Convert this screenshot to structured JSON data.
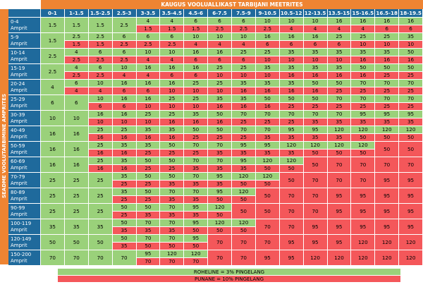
{
  "title": "KAUGUS VOOLUALLIKAST TARBIJANI MEETRITES",
  "vertical_title": "SEADME VOOLUTARBIMINE AMPRITES",
  "colors": {
    "green": "#9ad17a",
    "red": "#f4575a",
    "header_blue": "#1f6a9c",
    "title_orange": "#ee8432"
  },
  "columns": [
    "0-1",
    "1-1.5",
    "1.5-2.5",
    "2.5-3",
    "3-3.5",
    "3.5-4.5",
    "4.5-6",
    "6-7.5",
    "7.5-9",
    "9-10.5",
    "10.5-12",
    "12-13.5",
    "13.5-15",
    "15-16.5",
    "16.5-18",
    "18-19.5"
  ],
  "unit": "Amprit",
  "rows": [
    {
      "range": "0-4",
      "cells": [
        {
          "g": "1.5",
          "r": null
        },
        {
          "g": "1.5",
          "r": null
        },
        {
          "g": "1.5",
          "r": null
        },
        {
          "g": "2.5",
          "r": null
        },
        {
          "g": "4",
          "r": "1.5"
        },
        {
          "g": "4",
          "r": "1.5"
        },
        {
          "g": "6",
          "r": "1.5"
        },
        {
          "g": "6",
          "r": "2.5"
        },
        {
          "g": "6",
          "r": "2.5"
        },
        {
          "g": "10",
          "r": "2.5"
        },
        {
          "g": "10",
          "r": "4"
        },
        {
          "g": "10",
          "r": "4"
        },
        {
          "g": "16",
          "r": "4"
        },
        {
          "g": "16",
          "r": "4"
        },
        {
          "g": "16",
          "r": "6"
        },
        {
          "g": "16",
          "r": "6"
        }
      ]
    },
    {
      "range": "5-9",
      "cells": [
        {
          "g": "1.5",
          "r": null
        },
        {
          "g": "2.5",
          "r": "1.5"
        },
        {
          "g": "2.5",
          "r": "1.5"
        },
        {
          "g": "6",
          "r": "2.5"
        },
        {
          "g": "6",
          "r": "2.5"
        },
        {
          "g": "6",
          "r": "2.5"
        },
        {
          "g": "10",
          "r": "4"
        },
        {
          "g": "10",
          "r": "4"
        },
        {
          "g": "10",
          "r": "4"
        },
        {
          "g": "16",
          "r": "6"
        },
        {
          "g": "16",
          "r": "6"
        },
        {
          "g": "16",
          "r": "6"
        },
        {
          "g": "25",
          "r": "6"
        },
        {
          "g": "25",
          "r": "10"
        },
        {
          "g": "25",
          "r": "10"
        },
        {
          "g": "35",
          "r": "10"
        }
      ]
    },
    {
      "range": "10-14",
      "cells": [
        {
          "g": "2.5",
          "r": null
        },
        {
          "g": "4",
          "r": "2.5"
        },
        {
          "g": "6",
          "r": "2.5"
        },
        {
          "g": "6",
          "r": "2.5"
        },
        {
          "g": "10",
          "r": "4"
        },
        {
          "g": "10",
          "r": "4"
        },
        {
          "g": "16",
          "r": "6"
        },
        {
          "g": "16",
          "r": "6"
        },
        {
          "g": "25",
          "r": "6"
        },
        {
          "g": "25",
          "r": "10"
        },
        {
          "g": "35",
          "r": "10"
        },
        {
          "g": "35",
          "r": "10"
        },
        {
          "g": "35",
          "r": "10"
        },
        {
          "g": "35",
          "r": "16"
        },
        {
          "g": "35",
          "r": "16"
        },
        {
          "g": "50",
          "r": "16"
        }
      ]
    },
    {
      "range": "15-19",
      "cells": [
        {
          "g": "2.5",
          "r": null
        },
        {
          "g": "4",
          "r": "2.5"
        },
        {
          "g": "6",
          "r": "2.5"
        },
        {
          "g": "10",
          "r": "4"
        },
        {
          "g": "16",
          "r": "4"
        },
        {
          "g": "16",
          "r": "6"
        },
        {
          "g": "16",
          "r": "6"
        },
        {
          "g": "25",
          "r": "10"
        },
        {
          "g": "25",
          "r": "10"
        },
        {
          "g": "35",
          "r": "10"
        },
        {
          "g": "35",
          "r": "16"
        },
        {
          "g": "35",
          "r": "16"
        },
        {
          "g": "35",
          "r": "16"
        },
        {
          "g": "50",
          "r": "16"
        },
        {
          "g": "50",
          "r": "25"
        },
        {
          "g": "50",
          "r": "25"
        }
      ]
    },
    {
      "range": "20-24",
      "cells": [
        {
          "g": "4",
          "r": null
        },
        {
          "g": "6",
          "r": "4"
        },
        {
          "g": "10",
          "r": "4"
        },
        {
          "g": "16",
          "r": "6"
        },
        {
          "g": "16",
          "r": "6"
        },
        {
          "g": "16",
          "r": "10"
        },
        {
          "g": "25",
          "r": "10"
        },
        {
          "g": "25",
          "r": "10"
        },
        {
          "g": "35",
          "r": "16"
        },
        {
          "g": "35",
          "r": "16"
        },
        {
          "g": "35",
          "r": "16"
        },
        {
          "g": "50",
          "r": "16"
        },
        {
          "g": "50",
          "r": "25"
        },
        {
          "g": "70",
          "r": "25"
        },
        {
          "g": "70",
          "r": "25"
        },
        {
          "g": "70",
          "r": "25"
        }
      ]
    },
    {
      "range": "25-29",
      "cells": [
        {
          "g": "6",
          "r": null
        },
        {
          "g": "6",
          "r": null
        },
        {
          "g": "10",
          "r": "6"
        },
        {
          "g": "16",
          "r": "6"
        },
        {
          "g": "16",
          "r": "10"
        },
        {
          "g": "25",
          "r": "10"
        },
        {
          "g": "25",
          "r": "10"
        },
        {
          "g": "35",
          "r": "16"
        },
        {
          "g": "35",
          "r": "16"
        },
        {
          "g": "50",
          "r": "16"
        },
        {
          "g": "50",
          "r": "25"
        },
        {
          "g": "50",
          "r": "25"
        },
        {
          "g": "70",
          "r": "25"
        },
        {
          "g": "70",
          "r": "25"
        },
        {
          "g": "70",
          "r": "25"
        },
        {
          "g": "70",
          "r": "25"
        }
      ]
    },
    {
      "range": "30-39",
      "cells": [
        {
          "g": "10",
          "r": null
        },
        {
          "g": "10",
          "r": null
        },
        {
          "g": "16",
          "r": "10"
        },
        {
          "g": "16",
          "r": "10"
        },
        {
          "g": "25",
          "r": "10"
        },
        {
          "g": "25",
          "r": "16"
        },
        {
          "g": "35",
          "r": "16"
        },
        {
          "g": "50",
          "r": "16"
        },
        {
          "g": "70",
          "r": "25"
        },
        {
          "g": "70",
          "r": "25"
        },
        {
          "g": "70",
          "r": "25"
        },
        {
          "g": "70",
          "r": "35"
        },
        {
          "g": "70",
          "r": "35"
        },
        {
          "g": "95",
          "r": "35"
        },
        {
          "g": "95",
          "r": "35"
        },
        {
          "g": "95",
          "r": "35"
        }
      ]
    },
    {
      "range": "40-49",
      "cells": [
        {
          "g": "16",
          "r": null
        },
        {
          "g": "16",
          "r": null
        },
        {
          "g": "25",
          "r": "16"
        },
        {
          "g": "25",
          "r": "16"
        },
        {
          "g": "35",
          "r": "16"
        },
        {
          "g": "35",
          "r": "16"
        },
        {
          "g": "50",
          "r": "25"
        },
        {
          "g": "50",
          "r": "25"
        },
        {
          "g": "70",
          "r": "25"
        },
        {
          "g": "70",
          "r": "35"
        },
        {
          "g": "95",
          "r": "35"
        },
        {
          "g": "95",
          "r": "35"
        },
        {
          "g": "120",
          "r": "35"
        },
        {
          "g": "120",
          "r": "50"
        },
        {
          "g": "120",
          "r": "50"
        },
        {
          "g": "120",
          "r": "50"
        }
      ]
    },
    {
      "range": "50-59",
      "cells": [
        {
          "g": "16",
          "r": null
        },
        {
          "g": "16",
          "r": null
        },
        {
          "g": "25",
          "r": "16"
        },
        {
          "g": "35",
          "r": "16"
        },
        {
          "g": "35",
          "r": "25"
        },
        {
          "g": "50",
          "r": "25"
        },
        {
          "g": "70",
          "r": "25"
        },
        {
          "g": "70",
          "r": "35"
        },
        {
          "g": "95",
          "r": "35"
        },
        {
          "g": "95",
          "r": "35"
        },
        {
          "g": "120",
          "r": "35"
        },
        {
          "g": "120",
          "r": "50"
        },
        {
          "g": "120",
          "r": "50"
        },
        {
          "g": "120",
          "r": "50"
        },
        {
          "g": "50",
          "r": null
        },
        {
          "g": "50",
          "r": null
        }
      ]
    },
    {
      "range": "60-69",
      "cells": [
        {
          "g": "16",
          "r": null
        },
        {
          "g": "16",
          "r": null
        },
        {
          "g": "25",
          "r": "16"
        },
        {
          "g": "35",
          "r": "16"
        },
        {
          "g": "50",
          "r": "25"
        },
        {
          "g": "50",
          "r": "25"
        },
        {
          "g": "70",
          "r": "35"
        },
        {
          "g": "70",
          "r": "35"
        },
        {
          "g": "95",
          "r": "35"
        },
        {
          "g": "120",
          "r": "50"
        },
        {
          "g": "120",
          "r": "50"
        },
        {
          "g": "50",
          "r": null
        },
        {
          "g": "70",
          "r": null
        },
        {
          "g": "70",
          "r": null
        },
        {
          "g": "70",
          "r": null
        },
        {
          "g": "70",
          "r": null
        }
      ]
    },
    {
      "range": "70-79",
      "cells": [
        {
          "g": "25",
          "r": null
        },
        {
          "g": "25",
          "r": null
        },
        {
          "g": "25",
          "r": null
        },
        {
          "g": "35",
          "r": "25"
        },
        {
          "g": "50",
          "r": "25"
        },
        {
          "g": "50",
          "r": "35"
        },
        {
          "g": "70",
          "r": "35"
        },
        {
          "g": "95",
          "r": "35"
        },
        {
          "g": "120",
          "r": "50"
        },
        {
          "g": "120",
          "r": "50"
        },
        {
          "g": "50",
          "r": null
        },
        {
          "g": "70",
          "r": null
        },
        {
          "g": "70",
          "r": null
        },
        {
          "g": "70",
          "r": null
        },
        {
          "g": "95",
          "r": null
        },
        {
          "g": "95",
          "r": null
        }
      ]
    },
    {
      "range": "80-89",
      "cells": [
        {
          "g": "25",
          "r": null
        },
        {
          "g": "25",
          "r": null
        },
        {
          "g": "25",
          "r": null
        },
        {
          "g": "35",
          "r": "25"
        },
        {
          "g": "50",
          "r": "25"
        },
        {
          "g": "70",
          "r": "35"
        },
        {
          "g": "70",
          "r": "35"
        },
        {
          "g": "95",
          "r": "50"
        },
        {
          "g": "120",
          "r": "50"
        },
        {
          "g": "50",
          "r": null
        },
        {
          "g": "70",
          "r": null
        },
        {
          "g": "70",
          "r": null
        },
        {
          "g": "95",
          "r": null
        },
        {
          "g": "95",
          "r": null
        },
        {
          "g": "95",
          "r": null
        },
        {
          "g": "95",
          "r": null
        }
      ]
    },
    {
      "range": "90-99",
      "cells": [
        {
          "g": "25",
          "r": null
        },
        {
          "g": "25",
          "r": null
        },
        {
          "g": "25",
          "r": null
        },
        {
          "g": "50",
          "r": "25"
        },
        {
          "g": "50",
          "r": "35"
        },
        {
          "g": "70",
          "r": "35"
        },
        {
          "g": "95",
          "r": "35"
        },
        {
          "g": "120",
          "r": "50"
        },
        {
          "g": "50",
          "r": null
        },
        {
          "g": "50",
          "r": null
        },
        {
          "g": "70",
          "r": null
        },
        {
          "g": "70",
          "r": null
        },
        {
          "g": "95",
          "r": null
        },
        {
          "g": "95",
          "r": null
        },
        {
          "g": "95",
          "r": null
        },
        {
          "g": "95",
          "r": null
        }
      ]
    },
    {
      "range": "100-119",
      "cells": [
        {
          "g": "35",
          "r": null
        },
        {
          "g": "35",
          "r": null
        },
        {
          "g": "35",
          "r": null
        },
        {
          "g": "50",
          "r": "35"
        },
        {
          "g": "70",
          "r": "35"
        },
        {
          "g": "70",
          "r": "35"
        },
        {
          "g": "95",
          "r": "50"
        },
        {
          "g": "120",
          "r": "50"
        },
        {
          "g": "120",
          "r": "50"
        },
        {
          "g": "70",
          "r": null
        },
        {
          "g": "70",
          "r": null
        },
        {
          "g": "95",
          "r": null
        },
        {
          "g": "95",
          "r": null
        },
        {
          "g": "95",
          "r": null
        },
        {
          "g": "95",
          "r": null
        },
        {
          "g": "95",
          "r": null
        }
      ]
    },
    {
      "range": "120-149",
      "cells": [
        {
          "g": "50",
          "r": null
        },
        {
          "g": "50",
          "r": null
        },
        {
          "g": "50",
          "r": null
        },
        {
          "g": "50",
          "r": "35"
        },
        {
          "g": "70",
          "r": "50"
        },
        {
          "g": "70",
          "r": "50"
        },
        {
          "g": "95",
          "r": "50"
        },
        {
          "g": "70",
          "r": null
        },
        {
          "g": "70",
          "r": null
        },
        {
          "g": "70",
          "r": null
        },
        {
          "g": "95",
          "r": null
        },
        {
          "g": "95",
          "r": null
        },
        {
          "g": "95",
          "r": null
        },
        {
          "g": "120",
          "r": null
        },
        {
          "g": "120",
          "r": null
        },
        {
          "g": "120",
          "r": null
        }
      ]
    },
    {
      "range": "150-200",
      "cells": [
        {
          "g": "70",
          "r": null
        },
        {
          "g": "70",
          "r": null
        },
        {
          "g": "70",
          "r": null
        },
        {
          "g": "70",
          "r": null
        },
        {
          "g": "95",
          "r": "70"
        },
        {
          "g": "120",
          "r": "70"
        },
        {
          "g": "120",
          "r": "70"
        },
        {
          "g": "70",
          "r": null
        },
        {
          "g": "70",
          "r": null
        },
        {
          "g": "95",
          "r": null
        },
        {
          "g": "95",
          "r": null
        },
        {
          "g": "120",
          "r": null
        },
        {
          "g": "120",
          "r": null
        },
        {
          "g": "120",
          "r": null
        },
        {
          "g": "120",
          "r": null
        },
        {
          "g": "120",
          "r": null
        }
      ]
    }
  ],
  "red_only": {
    "8": [
      14,
      15
    ],
    "9": [
      11,
      12,
      13,
      14,
      15
    ],
    "10": [
      10,
      11,
      12,
      13,
      14,
      15
    ],
    "11": [
      9,
      10,
      11,
      12,
      13,
      14,
      15
    ],
    "12": [
      8,
      9,
      10,
      11,
      12,
      13,
      14,
      15
    ],
    "13": [
      9,
      10,
      11,
      12,
      13,
      14,
      15
    ],
    "14": [
      7,
      8,
      9,
      10,
      11,
      12,
      13,
      14,
      15
    ],
    "15": [
      7,
      8,
      9,
      10,
      11,
      12,
      13,
      14,
      15
    ]
  },
  "legend": {
    "green": "ROHELINE = 3% PINGELANG",
    "red": "PUNANE = 10% PINGELANG"
  }
}
